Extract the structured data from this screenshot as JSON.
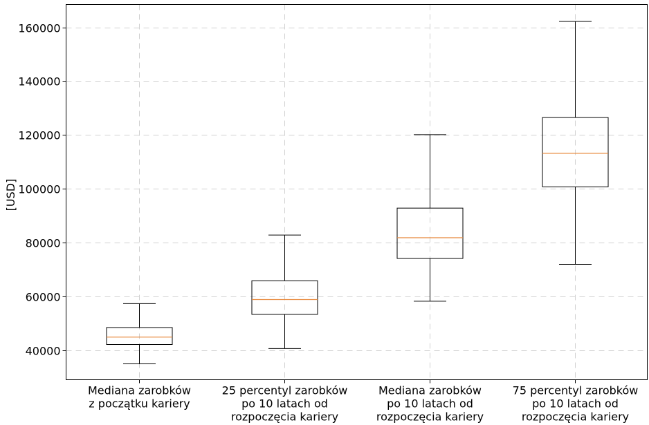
{
  "chart_data": {
    "type": "box",
    "ylabel": "[USD]",
    "ylim": [
      29000,
      168500
    ],
    "yticks": [
      40000,
      60000,
      80000,
      100000,
      120000,
      140000,
      160000
    ],
    "ytick_labels": [
      "40000",
      "60000",
      "80000",
      "100000",
      "120000",
      "140000",
      "160000"
    ],
    "grid": true,
    "colors": {
      "median": "#e8883a",
      "box": "#000000",
      "grid": "#d0d0d0"
    },
    "categories": [
      [
        "Mediana zarobków",
        "z początku kariery"
      ],
      [
        "25 percentyl zarobków",
        "po 10 latach od",
        "rozpoczęcia kariery"
      ],
      [
        "Mediana zarobków",
        "po 10 latach od",
        "rozpoczęcia kariery"
      ],
      [
        "75 percentyl zarobków",
        "po 10 latach od",
        "rozpoczęcia kariery"
      ]
    ],
    "boxes": [
      {
        "whislo": 34900,
        "q1": 42100,
        "med": 44850,
        "q3": 48400,
        "whishi": 57300
      },
      {
        "whislo": 40600,
        "q1": 53300,
        "med": 58800,
        "q3": 65800,
        "whishi": 82800
      },
      {
        "whislo": 58200,
        "q1": 74100,
        "med": 81800,
        "q3": 92800,
        "whishi": 120100
      },
      {
        "whislo": 71900,
        "q1": 100700,
        "med": 113200,
        "q3": 126500,
        "whishi": 162200
      }
    ]
  }
}
